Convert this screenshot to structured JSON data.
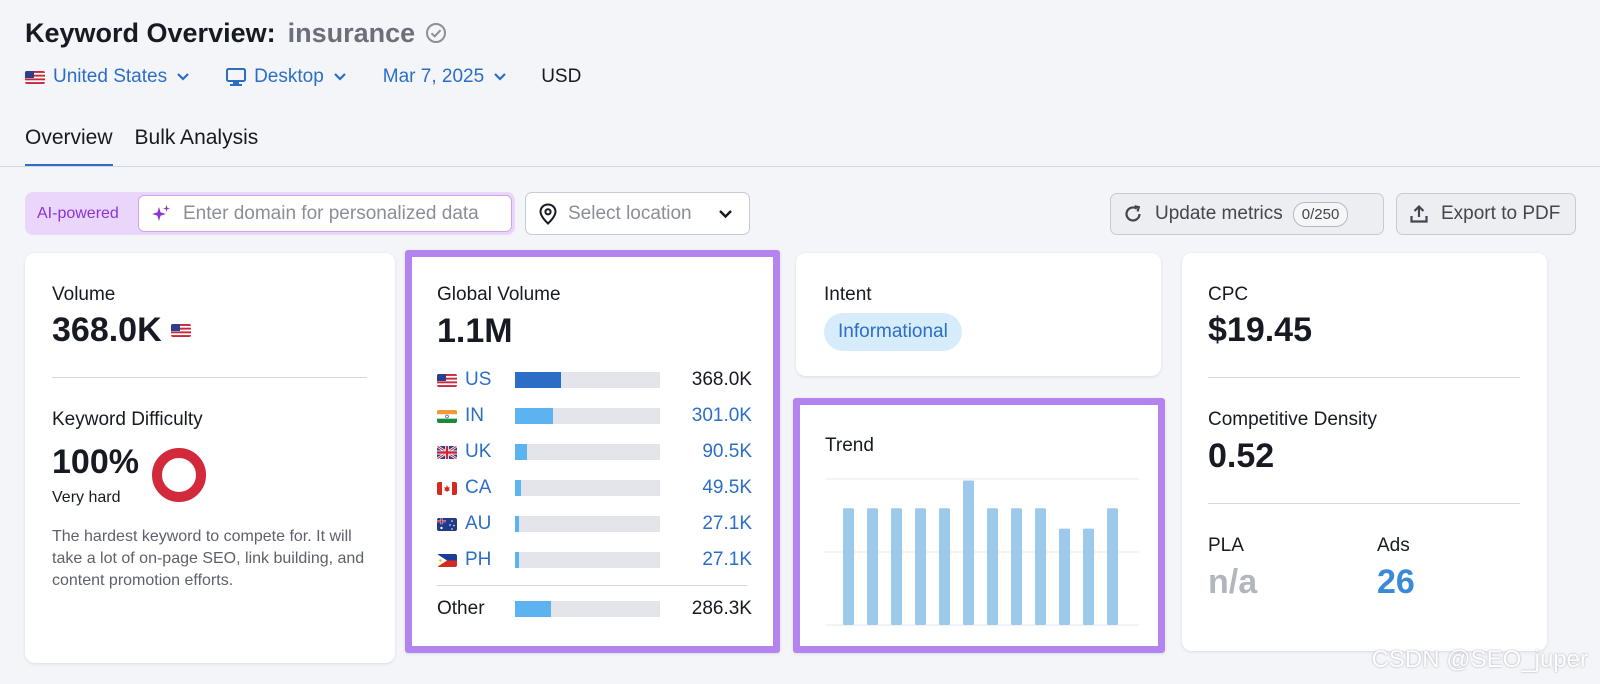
{
  "header": {
    "title": "Keyword Overview:",
    "keyword": "insurance",
    "filters": {
      "country": "United States",
      "device": "Desktop",
      "date": "Mar 7, 2025",
      "currency": "USD"
    }
  },
  "tabs": [
    {
      "label": "Overview",
      "active": true
    },
    {
      "label": "Bulk Analysis",
      "active": false
    }
  ],
  "toolbar": {
    "ai_label": "AI-powered",
    "domain_placeholder": "Enter domain for personalized data",
    "location_placeholder": "Select location",
    "update_label": "Update metrics",
    "update_count": "0/250",
    "export_label": "Export to PDF"
  },
  "volume_card": {
    "label": "Volume",
    "value": "368.0K",
    "kd_label": "Keyword Difficulty",
    "kd_value": "100%",
    "kd_fraction": 1.0,
    "kd_level": "Very hard",
    "kd_description": "The hardest keyword to compete for. It will take a lot of on-page SEO, link building, and content promotion efforts."
  },
  "global_volume": {
    "label": "Global Volume",
    "value": "1.1M",
    "rows": [
      {
        "code": "US",
        "value": "368.0K",
        "fraction": 0.32
      },
      {
        "code": "IN",
        "value": "301.0K",
        "fraction": 0.26
      },
      {
        "code": "UK",
        "value": "90.5K",
        "fraction": 0.08
      },
      {
        "code": "CA",
        "value": "49.5K",
        "fraction": 0.04
      },
      {
        "code": "AU",
        "value": "27.1K",
        "fraction": 0.03
      },
      {
        "code": "PH",
        "value": "27.1K",
        "fraction": 0.03
      }
    ],
    "other": {
      "label": "Other",
      "value": "286.3K",
      "fraction": 0.25
    },
    "colors": {
      "us": "#2c6ec6",
      "other": "#5cb3ef",
      "track": "#e3e5ea"
    }
  },
  "intent_card": {
    "label": "Intent",
    "intent": "Informational"
  },
  "trend_card": {
    "label": "Trend",
    "chart_data": {
      "type": "bar",
      "values": [
        0.8,
        0.8,
        0.8,
        0.8,
        0.8,
        0.99,
        0.8,
        0.8,
        0.8,
        0.66,
        0.66,
        0.8
      ],
      "ylim": [
        0,
        1
      ],
      "grid": true,
      "color": "#9cc9ec"
    }
  },
  "cpc_card": {
    "label": "CPC",
    "value": "$19.45",
    "density_label": "Competitive Density",
    "density_value": "0.52",
    "pla_label": "PLA",
    "pla_value": "n/a",
    "ads_label": "Ads",
    "ads_value": "26"
  },
  "watermark": "CSDN @SEO_juper"
}
